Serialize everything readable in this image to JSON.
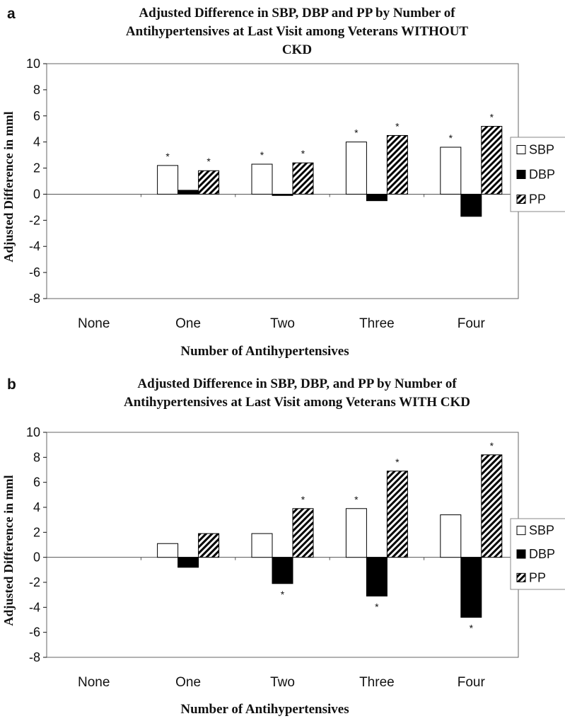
{
  "chart_data": [
    {
      "panel_label": "a",
      "type": "bar",
      "title_lines": [
        "Adjusted Difference in SBP, DBP and PP by Number of",
        "Antihypertensives at Last Visit among Veterans WITHOUT",
        "CKD"
      ],
      "xlabel": "Number of Antihypertensives",
      "ylabel": "Adjusted Difference in mml",
      "ylim": [
        -8,
        10
      ],
      "yticks": [
        "10",
        "8",
        "6",
        "4",
        "2",
        "0",
        "-2",
        "-4",
        "-6",
        "-8"
      ],
      "categories": [
        "None",
        "One",
        "Two",
        "Three",
        "Four"
      ],
      "legend": {
        "placement": "right",
        "labels": [
          "SBP",
          "DBP",
          "PP"
        ]
      },
      "series": [
        {
          "name": "SBP",
          "fill": "#ffffff",
          "values": [
            null,
            2.2,
            2.3,
            4.0,
            3.6
          ],
          "stars": [
            false,
            true,
            true,
            true,
            true
          ]
        },
        {
          "name": "DBP",
          "fill": "#000000",
          "values": [
            null,
            0.3,
            -0.1,
            -0.5,
            -1.7
          ],
          "stars": [
            false,
            false,
            false,
            false,
            false
          ]
        },
        {
          "name": "PP",
          "fill": "hatch",
          "values": [
            null,
            1.8,
            2.4,
            4.5,
            5.2
          ],
          "stars": [
            false,
            true,
            true,
            true,
            true
          ]
        }
      ]
    },
    {
      "panel_label": "b",
      "type": "bar",
      "title_lines": [
        "Adjusted Difference in SBP, DBP, and PP by Number of",
        "Antihypertensives at Last Visit among Veterans WITH CKD"
      ],
      "xlabel": "Number of Antihypertensives",
      "ylabel": "Adjusted Difference in mml",
      "ylim": [
        -8,
        10
      ],
      "yticks": [
        "10",
        "8",
        "6",
        "4",
        "2",
        "0",
        "-2",
        "-4",
        "-6",
        "-8"
      ],
      "categories": [
        "None",
        "One",
        "Two",
        "Three",
        "Four"
      ],
      "legend": {
        "placement": "right",
        "labels": [
          "SBP",
          "DBP",
          "PP"
        ]
      },
      "series": [
        {
          "name": "SBP",
          "fill": "#ffffff",
          "values": [
            null,
            1.1,
            1.9,
            3.9,
            3.4
          ],
          "stars": [
            false,
            false,
            false,
            true,
            false
          ]
        },
        {
          "name": "DBP",
          "fill": "#000000",
          "values": [
            null,
            -0.8,
            -2.1,
            -3.1,
            -4.8
          ],
          "stars": [
            false,
            false,
            true,
            true,
            true
          ]
        },
        {
          "name": "PP",
          "fill": "hatch",
          "values": [
            null,
            1.9,
            3.9,
            6.9,
            8.2
          ],
          "stars": [
            false,
            false,
            true,
            true,
            true
          ]
        }
      ],
      "significance_marker": "*"
    }
  ]
}
